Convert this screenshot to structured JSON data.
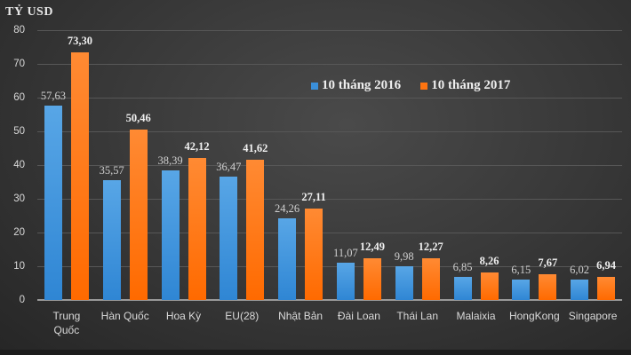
{
  "chart_data": {
    "type": "bar",
    "title": "",
    "unit_label": "TỶ USD",
    "xlabel": "",
    "ylabel": "TỶ USD",
    "ylim": [
      0,
      80
    ],
    "y_ticks": [
      0,
      10,
      20,
      30,
      40,
      50,
      60,
      70,
      80
    ],
    "grid": true,
    "legend_position": "top-right inside plot",
    "categories": [
      "Trung Quốc",
      "Hàn Quốc",
      "Hoa Kỳ",
      "EU(28)",
      "Nhật Bản",
      "Đài Loan",
      "Thái Lan",
      "Malaixia",
      "HongKong",
      "Singapore"
    ],
    "series": [
      {
        "name": "10 tháng 2016",
        "color": "#3a8fd9",
        "values": [
          57.63,
          35.57,
          38.39,
          36.47,
          24.26,
          11.07,
          9.98,
          6.85,
          6.15,
          6.02
        ],
        "labels": [
          "57,63",
          "35,57",
          "38,39",
          "36,47",
          "24,26",
          "11,07",
          "9,98",
          "6,85",
          "6,15",
          "6,02"
        ]
      },
      {
        "name": "10 tháng 2017",
        "color": "#ff7410",
        "values": [
          73.3,
          50.46,
          42.12,
          41.62,
          27.11,
          12.49,
          12.27,
          8.26,
          7.67,
          6.94
        ],
        "labels": [
          "73,30",
          "50,46",
          "42,12",
          "41,62",
          "27,11",
          "12,49",
          "12,27",
          "8,26",
          "7,67",
          "6,94"
        ]
      }
    ]
  },
  "legend": {
    "items": [
      {
        "label": "10 tháng 2016",
        "color": "#3a8fd9"
      },
      {
        "label": "10 tháng 2017",
        "color": "#ff7410"
      }
    ]
  }
}
